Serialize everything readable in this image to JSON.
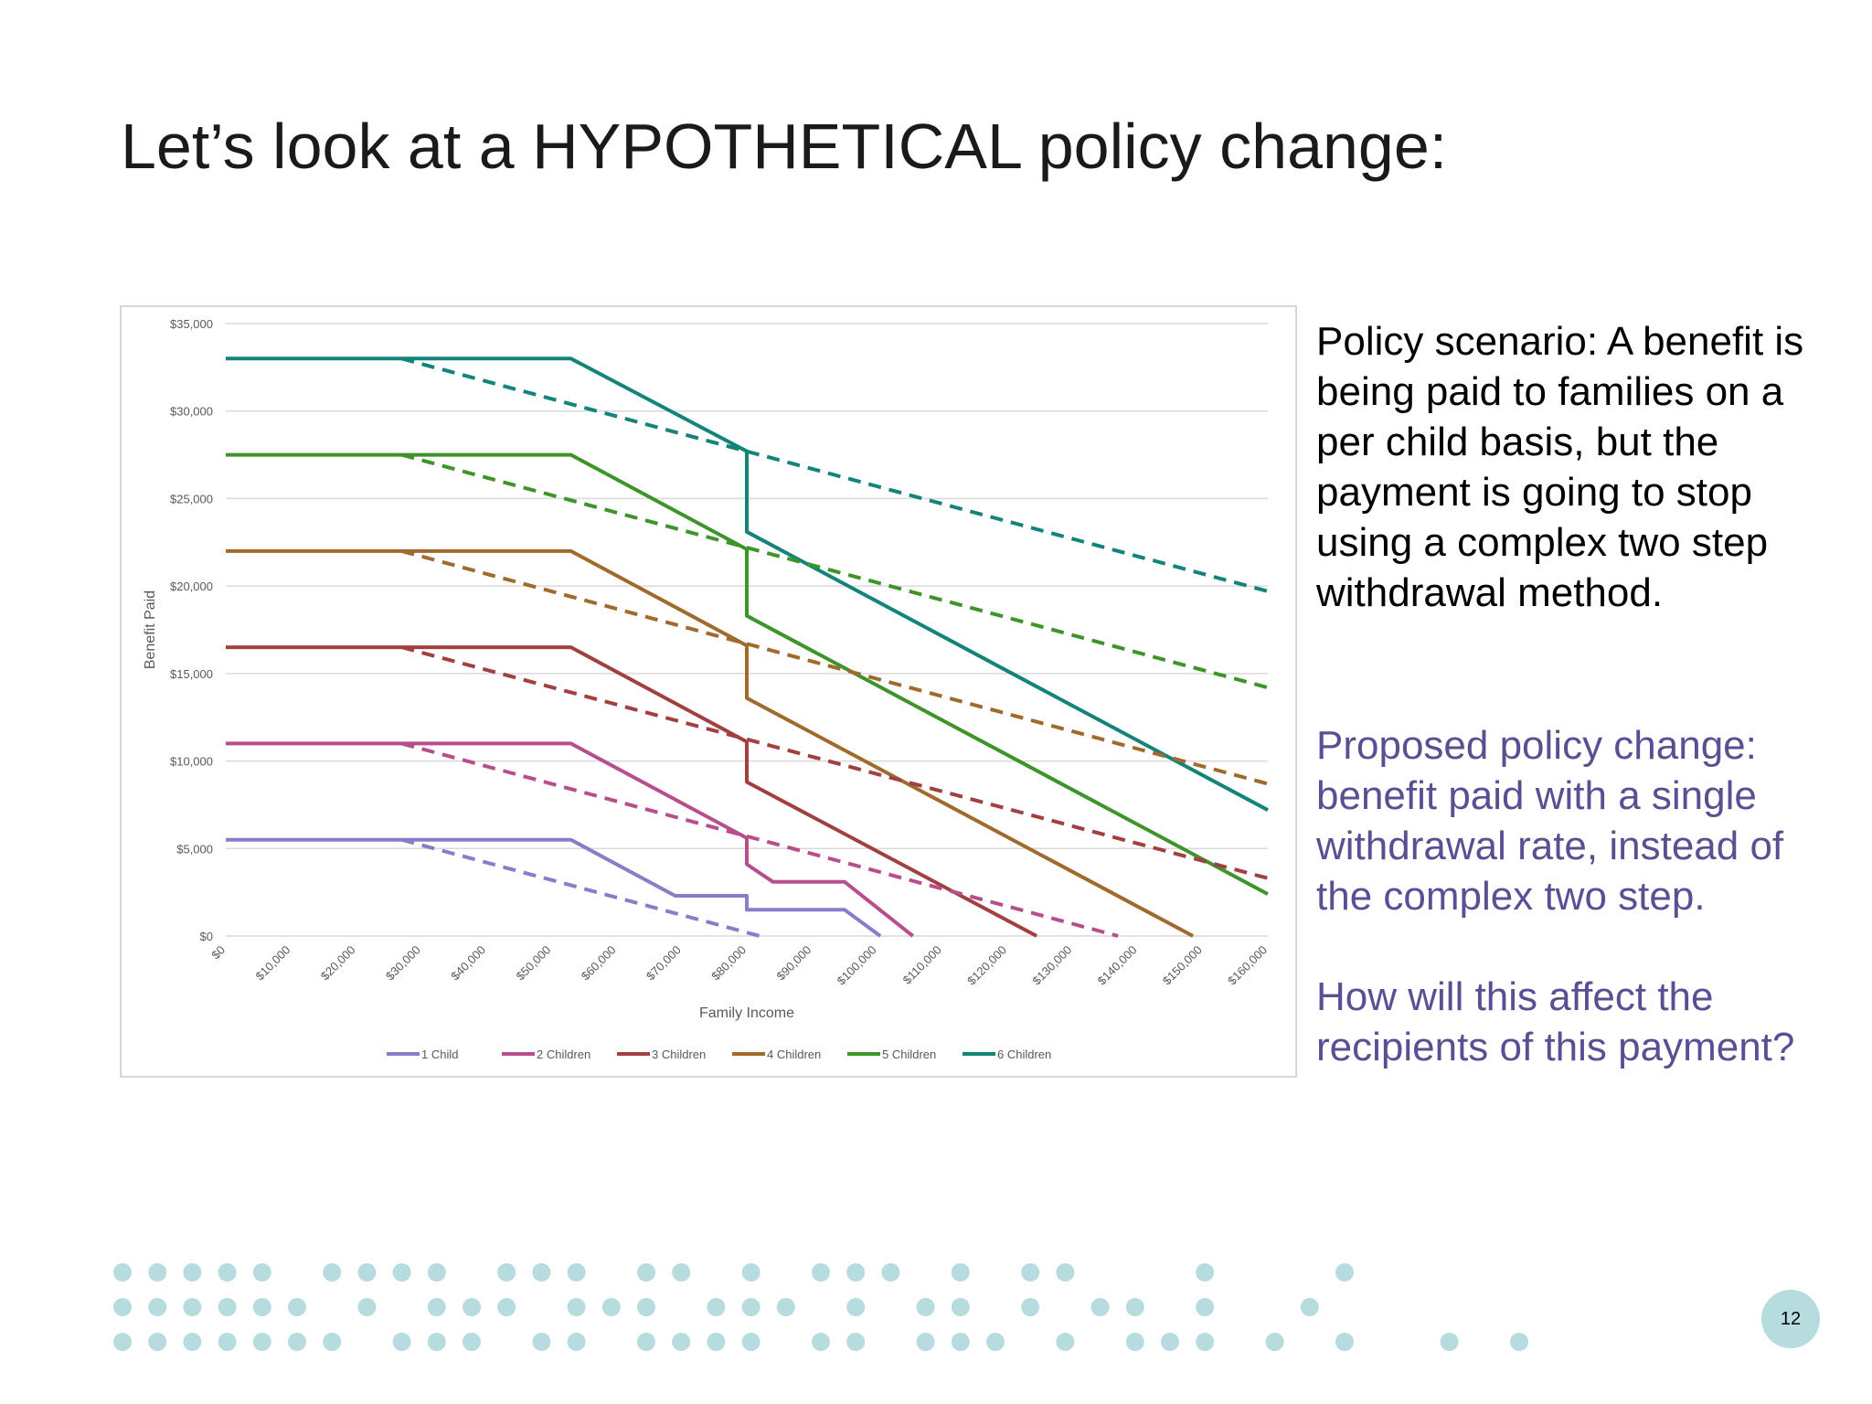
{
  "slide": {
    "title": "Let’s look at a HYPOTHETICAL policy change:",
    "scenario_text": "Policy scenario: A benefit is being paid to families on a per child basis, but the payment is going to stop using a complex two step withdrawal method.",
    "proposal_text": "Proposed policy change: benefit paid with a single withdrawal rate, instead of the complex two step.",
    "question_text": "How will this affect the recipients of this payment?",
    "page_number": "12"
  },
  "colors": {
    "proposal_text": "#5b4f94",
    "page_badge": "#b6dcdf",
    "dots": "#b6dcdf"
  },
  "chart_data": {
    "type": "line",
    "xlabel": "Family Income",
    "ylabel": "Benefit Paid",
    "xlim": [
      0,
      160000
    ],
    "ylim": [
      0,
      35000
    ],
    "x_ticks": [
      0,
      10000,
      20000,
      30000,
      40000,
      50000,
      60000,
      70000,
      80000,
      90000,
      100000,
      110000,
      120000,
      130000,
      140000,
      150000,
      160000
    ],
    "x_tick_labels": [
      "$0",
      "$10,000",
      "$20,000",
      "$30,000",
      "$40,000",
      "$50,000",
      "$60,000",
      "$70,000",
      "$80,000",
      "$90,000",
      "$100,000",
      "$110,000",
      "$120,000",
      "$130,000",
      "$140,000",
      "$150,000",
      "$160,000"
    ],
    "y_ticks": [
      0,
      5000,
      10000,
      15000,
      20000,
      25000,
      30000,
      35000
    ],
    "y_tick_labels": [
      "$0",
      "$5,000",
      "$10,000",
      "$15,000",
      "$20,000",
      "$25,000",
      "$30,000",
      "$35,000"
    ],
    "grid": "horizontal",
    "legend_position": "bottom",
    "series": [
      {
        "name": "1 Child",
        "color": "#8a7cc8",
        "dash": false,
        "points": [
          [
            0,
            5500
          ],
          [
            53000,
            5500
          ],
          [
            69000,
            2300
          ],
          [
            80000,
            2300
          ],
          [
            80000,
            1500
          ],
          [
            95000,
            1500
          ],
          [
            100500,
            0
          ]
        ]
      },
      {
        "name": "2 Children",
        "color": "#b84d8c",
        "dash": false,
        "points": [
          [
            0,
            11000
          ],
          [
            53000,
            11000
          ],
          [
            80000,
            5600
          ],
          [
            80000,
            4100
          ],
          [
            84000,
            3100
          ],
          [
            95000,
            3100
          ],
          [
            105500,
            0
          ]
        ]
      },
      {
        "name": "3 Children",
        "color": "#a23f3f",
        "dash": false,
        "points": [
          [
            0,
            16500
          ],
          [
            53000,
            16500
          ],
          [
            80000,
            11100
          ],
          [
            80000,
            8800
          ],
          [
            124500,
            0
          ]
        ]
      },
      {
        "name": "4 Children",
        "color": "#a06a2c",
        "dash": false,
        "points": [
          [
            0,
            22000
          ],
          [
            53000,
            22000
          ],
          [
            80000,
            16600
          ],
          [
            80000,
            13600
          ],
          [
            148500,
            0
          ]
        ]
      },
      {
        "name": "5 Children",
        "color": "#3d9428",
        "dash": false,
        "points": [
          [
            0,
            27500
          ],
          [
            53000,
            27500
          ],
          [
            80000,
            22100
          ],
          [
            80000,
            18300
          ],
          [
            160000,
            2400
          ]
        ]
      },
      {
        "name": "6 Children",
        "color": "#13847a",
        "dash": false,
        "points": [
          [
            0,
            33000
          ],
          [
            53000,
            33000
          ],
          [
            80000,
            27700
          ],
          [
            80000,
            23100
          ],
          [
            160000,
            7200
          ]
        ]
      },
      {
        "color": "#8a7cc8",
        "dash": true,
        "points": [
          [
            27000,
            5500
          ],
          [
            82000,
            0
          ]
        ]
      },
      {
        "color": "#b84d8c",
        "dash": true,
        "points": [
          [
            27000,
            11000
          ],
          [
            137000,
            0
          ]
        ]
      },
      {
        "color": "#a23f3f",
        "dash": true,
        "points": [
          [
            27000,
            16500
          ],
          [
            160000,
            3300
          ]
        ]
      },
      {
        "color": "#a06a2c",
        "dash": true,
        "points": [
          [
            27000,
            22000
          ],
          [
            160000,
            8700
          ]
        ]
      },
      {
        "color": "#3d9428",
        "dash": true,
        "points": [
          [
            27000,
            27500
          ],
          [
            160000,
            14200
          ]
        ]
      },
      {
        "color": "#13847a",
        "dash": true,
        "points": [
          [
            27000,
            33000
          ],
          [
            160000,
            19700
          ]
        ]
      }
    ]
  }
}
